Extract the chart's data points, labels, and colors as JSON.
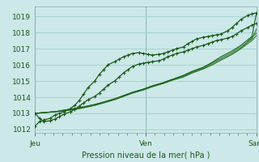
{
  "title": "",
  "xlabel": "Pression niveau de la mer( hPa )",
  "bg_color": "#cce8e8",
  "grid_color": "#99cccc",
  "line_color_dark": "#1a5c1a",
  "line_color_mid": "#2d7a2d",
  "xtick_labels": [
    "Jeu",
    "Ven",
    "Sam"
  ],
  "xtick_pos": [
    0.0,
    0.5,
    1.0
  ],
  "ytick_vals": [
    1012,
    1013,
    1014,
    1015,
    1016,
    1017,
    1018,
    1019
  ],
  "ymin": 1011.8,
  "ymax": 1019.6,
  "font_color": "#1a5c1a",
  "series": [
    {
      "x": [
        0.0,
        0.02,
        0.04,
        0.07,
        0.09,
        0.11,
        0.13,
        0.16,
        0.18,
        0.2,
        0.22,
        0.24,
        0.27,
        0.29,
        0.31,
        0.33,
        0.36,
        0.38,
        0.4,
        0.42,
        0.44,
        0.47,
        0.49,
        0.51,
        0.53,
        0.56,
        0.58,
        0.6,
        0.62,
        0.64,
        0.67,
        0.69,
        0.71,
        0.73,
        0.76,
        0.78,
        0.8,
        0.82,
        0.84,
        0.87,
        0.89,
        0.91,
        0.93,
        0.96,
        0.98,
        1.0
      ],
      "y": [
        1012.2,
        1012.5,
        1012.6,
        1012.7,
        1012.9,
        1013.0,
        1013.1,
        1013.3,
        1013.5,
        1013.8,
        1014.2,
        1014.6,
        1015.0,
        1015.4,
        1015.7,
        1016.0,
        1016.2,
        1016.35,
        1016.5,
        1016.6,
        1016.7,
        1016.75,
        1016.7,
        1016.65,
        1016.6,
        1016.65,
        1016.7,
        1016.8,
        1016.9,
        1017.0,
        1017.1,
        1017.3,
        1017.45,
        1017.6,
        1017.7,
        1017.75,
        1017.8,
        1017.85,
        1017.9,
        1018.1,
        1018.3,
        1018.55,
        1018.8,
        1019.05,
        1019.15,
        1019.2
      ],
      "marker": true,
      "color": "#1a5c1a",
      "lw": 0.9
    },
    {
      "x": [
        0.0,
        0.02,
        0.04,
        0.07,
        0.09,
        0.11,
        0.13,
        0.16,
        0.18,
        0.2,
        0.22,
        0.24,
        0.27,
        0.29,
        0.31,
        0.33,
        0.36,
        0.38,
        0.4,
        0.42,
        0.44,
        0.47,
        0.49,
        0.51,
        0.53,
        0.56,
        0.58,
        0.6,
        0.62,
        0.64,
        0.67,
        0.69,
        0.71,
        0.73,
        0.76,
        0.78,
        0.8,
        0.82,
        0.84,
        0.87,
        0.89,
        0.91,
        0.93,
        0.96,
        0.98,
        1.0
      ],
      "y": [
        1013.0,
        1012.7,
        1012.5,
        1012.55,
        1012.65,
        1012.8,
        1012.95,
        1013.1,
        1013.25,
        1013.45,
        1013.65,
        1013.85,
        1014.05,
        1014.25,
        1014.5,
        1014.75,
        1015.0,
        1015.25,
        1015.5,
        1015.7,
        1015.9,
        1016.05,
        1016.1,
        1016.15,
        1016.2,
        1016.25,
        1016.35,
        1016.5,
        1016.6,
        1016.7,
        1016.8,
        1016.9,
        1017.0,
        1017.1,
        1017.2,
        1017.3,
        1017.4,
        1017.5,
        1017.55,
        1017.65,
        1017.75,
        1017.9,
        1018.1,
        1018.3,
        1018.45,
        1018.55
      ],
      "marker": true,
      "color": "#1a5c1a",
      "lw": 0.9
    },
    {
      "x": [
        0.0,
        0.04,
        0.09,
        0.13,
        0.18,
        0.22,
        0.27,
        0.31,
        0.36,
        0.4,
        0.44,
        0.49,
        0.53,
        0.58,
        0.62,
        0.67,
        0.71,
        0.76,
        0.8,
        0.84,
        0.89,
        0.93,
        0.98,
        1.0
      ],
      "y": [
        1013.0,
        1013.05,
        1013.1,
        1013.15,
        1013.25,
        1013.35,
        1013.5,
        1013.65,
        1013.85,
        1014.05,
        1014.25,
        1014.45,
        1014.65,
        1014.85,
        1015.05,
        1015.25,
        1015.5,
        1015.75,
        1016.0,
        1016.3,
        1016.65,
        1017.0,
        1017.5,
        1017.8
      ],
      "marker": false,
      "color": "#2d7a2d",
      "lw": 0.8
    },
    {
      "x": [
        0.0,
        0.04,
        0.09,
        0.13,
        0.18,
        0.22,
        0.27,
        0.31,
        0.36,
        0.4,
        0.44,
        0.49,
        0.53,
        0.58,
        0.62,
        0.67,
        0.71,
        0.76,
        0.8,
        0.84,
        0.89,
        0.93,
        0.98,
        1.0
      ],
      "y": [
        1013.0,
        1013.05,
        1013.1,
        1013.15,
        1013.25,
        1013.35,
        1013.5,
        1013.65,
        1013.85,
        1014.05,
        1014.25,
        1014.45,
        1014.65,
        1014.85,
        1015.05,
        1015.25,
        1015.5,
        1015.75,
        1016.0,
        1016.3,
        1016.65,
        1017.0,
        1017.7,
        1017.95
      ],
      "marker": false,
      "color": "#2d7a2d",
      "lw": 0.8
    },
    {
      "x": [
        0.0,
        0.04,
        0.09,
        0.13,
        0.18,
        0.22,
        0.27,
        0.31,
        0.36,
        0.4,
        0.44,
        0.49,
        0.53,
        0.58,
        0.62,
        0.67,
        0.71,
        0.76,
        0.8,
        0.84,
        0.89,
        0.93,
        0.98,
        1.0
      ],
      "y": [
        1013.0,
        1013.05,
        1013.1,
        1013.2,
        1013.3,
        1013.4,
        1013.55,
        1013.7,
        1013.9,
        1014.1,
        1014.3,
        1014.5,
        1014.7,
        1014.9,
        1015.1,
        1015.3,
        1015.55,
        1015.8,
        1016.1,
        1016.4,
        1016.75,
        1017.1,
        1017.6,
        1018.2
      ],
      "marker": false,
      "color": "#2d7a2d",
      "lw": 0.8
    },
    {
      "x": [
        0.0,
        0.04,
        0.09,
        0.13,
        0.18,
        0.22,
        0.27,
        0.31,
        0.36,
        0.4,
        0.44,
        0.49,
        0.53,
        0.58,
        0.62,
        0.67,
        0.71,
        0.76,
        0.8,
        0.84,
        0.89,
        0.93,
        0.98,
        1.0
      ],
      "y": [
        1013.0,
        1013.05,
        1013.1,
        1013.2,
        1013.3,
        1013.4,
        1013.55,
        1013.7,
        1013.9,
        1014.1,
        1014.3,
        1014.5,
        1014.7,
        1014.9,
        1015.1,
        1015.35,
        1015.6,
        1015.85,
        1016.15,
        1016.5,
        1016.85,
        1017.2,
        1017.75,
        1019.2
      ],
      "marker": false,
      "color": "#1a5c1a",
      "lw": 0.8
    }
  ],
  "vline_x": [
    0.0,
    0.5,
    1.0
  ],
  "vline_color": "#668888"
}
